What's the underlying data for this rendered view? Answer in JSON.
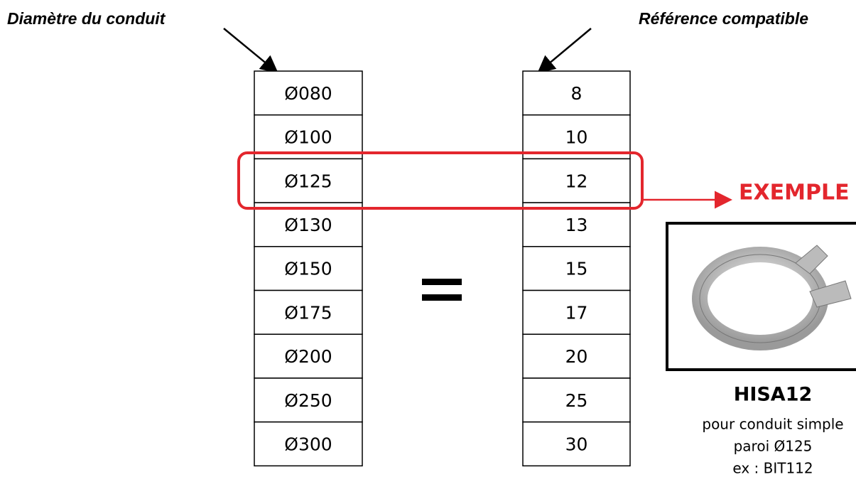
{
  "labels": {
    "left": "Diamètre du conduit",
    "right": "Référence compatible"
  },
  "table": {
    "diameters": [
      "Ø080",
      "Ø100",
      "Ø125",
      "Ø130",
      "Ø150",
      "Ø175",
      "Ø200",
      "Ø250",
      "Ø300"
    ],
    "references": [
      "8",
      "10",
      "12",
      "13",
      "15",
      "17",
      "20",
      "25",
      "30"
    ]
  },
  "example": {
    "label": "EXEMPLE",
    "product": "HISA12",
    "description": [
      "pour conduit simple",
      "paroi Ø125",
      "ex : BIT112"
    ]
  }
}
